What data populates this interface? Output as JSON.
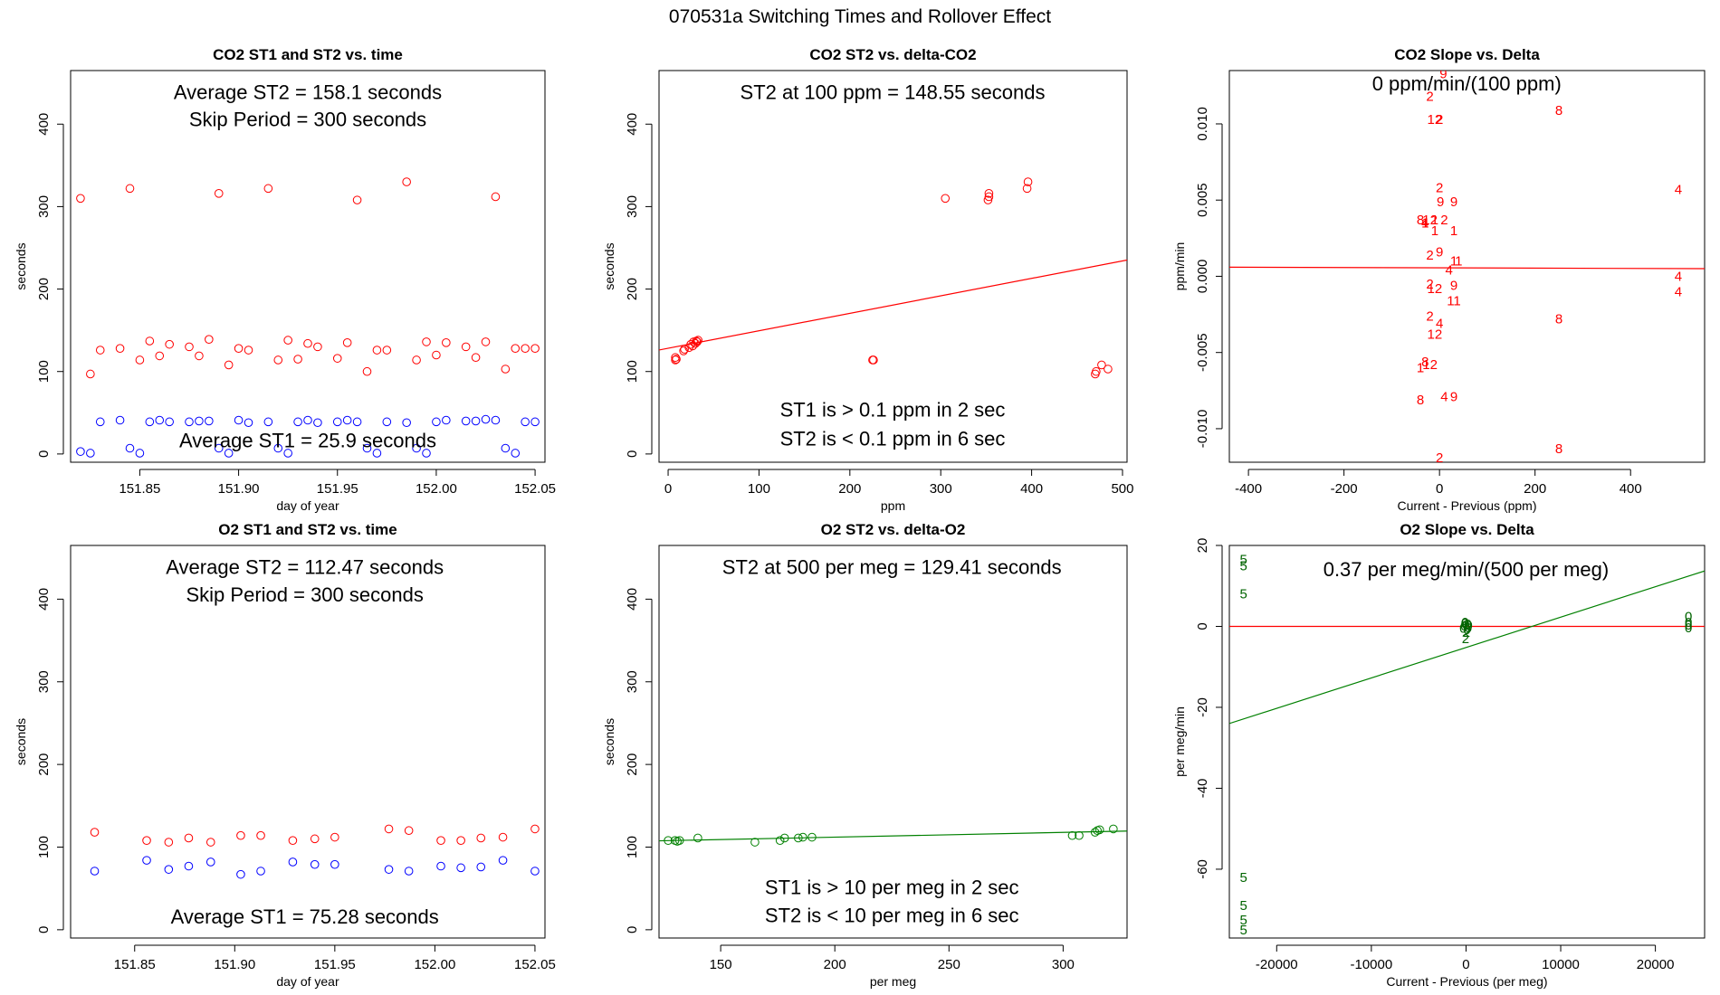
{
  "figure": {
    "title": "070531a   Switching Times and Rollover Effect"
  },
  "chart_data": [
    {
      "id": "co2_time",
      "type": "scatter",
      "title": "CO2 ST1 and ST2 vs. time",
      "xlabel": "day of year",
      "ylabel": "seconds",
      "xlim": [
        151.815,
        152.055
      ],
      "ylim": [
        -10,
        465
      ],
      "xticks": [
        151.85,
        151.9,
        151.95,
        152.0,
        152.05
      ],
      "xtick_labels": [
        "151.85",
        "151.90",
        "151.95",
        "152.00",
        "152.05"
      ],
      "yticks": [
        0,
        100,
        200,
        300,
        400
      ],
      "ytick_labels": [
        "0",
        "100",
        "200",
        "300",
        "400"
      ],
      "annotations": [
        {
          "text": "Average ST2 =  158.1  seconds",
          "x": 151.935,
          "y": 438
        },
        {
          "text": "Skip Period =  300  seconds",
          "x": 151.935,
          "y": 405
        },
        {
          "text": "Average ST1 =  25.9  seconds",
          "x": 151.935,
          "y": 16
        }
      ],
      "series": [
        {
          "name": "ST2",
          "color": "#ff0000",
          "marker": "circle",
          "x": [
            151.82,
            151.825,
            151.83,
            151.84,
            151.845,
            151.85,
            151.855,
            151.86,
            151.865,
            151.875,
            151.88,
            151.885,
            151.89,
            151.895,
            151.9,
            151.905,
            151.915,
            151.92,
            151.925,
            151.93,
            151.935,
            151.94,
            151.95,
            151.955,
            151.96,
            151.965,
            151.97,
            151.975,
            151.985,
            151.99,
            151.995,
            152.0,
            152.005,
            152.015,
            152.02,
            152.025,
            152.03,
            152.035,
            152.04,
            152.045,
            152.05
          ],
          "y": [
            310,
            97,
            126,
            128,
            322,
            114,
            137,
            119,
            133,
            130,
            119,
            139,
            316,
            108,
            128,
            126,
            322,
            114,
            138,
            115,
            134,
            130,
            116,
            135,
            308,
            100,
            126,
            126,
            330,
            114,
            136,
            120,
            135,
            130,
            117,
            136,
            312,
            103,
            128,
            128,
            128
          ]
        },
        {
          "name": "ST1",
          "color": "#0000ff",
          "marker": "circle",
          "x": [
            151.82,
            151.825,
            151.83,
            151.84,
            151.845,
            151.85,
            151.855,
            151.86,
            151.865,
            151.875,
            151.88,
            151.885,
            151.89,
            151.895,
            151.9,
            151.905,
            151.915,
            151.92,
            151.925,
            151.93,
            151.935,
            151.94,
            151.95,
            151.955,
            151.96,
            151.965,
            151.97,
            151.975,
            151.985,
            151.99,
            151.995,
            152.0,
            152.005,
            152.015,
            152.02,
            152.025,
            152.03,
            152.035,
            152.04,
            152.045,
            152.05
          ],
          "y": [
            3,
            1,
            39,
            41,
            7,
            1,
            39,
            41,
            39,
            39,
            40,
            40,
            7,
            1,
            41,
            38,
            39,
            7,
            1,
            39,
            41,
            38,
            39,
            41,
            39,
            7,
            1,
            39,
            38,
            7,
            1,
            39,
            41,
            40,
            40,
            42,
            41,
            7,
            1,
            39,
            39
          ]
        }
      ]
    },
    {
      "id": "co2_delta",
      "type": "scatter",
      "title": "CO2 ST2 vs. delta-CO2",
      "xlabel": "ppm",
      "ylabel": "seconds",
      "xlim": [
        -10,
        505
      ],
      "ylim": [
        -10,
        465
      ],
      "xticks": [
        0,
        100,
        200,
        300,
        400,
        500
      ],
      "xtick_labels": [
        "0",
        "100",
        "200",
        "300",
        "400",
        "500"
      ],
      "yticks": [
        0,
        100,
        200,
        300,
        400
      ],
      "ytick_labels": [
        "0",
        "100",
        "200",
        "300",
        "400"
      ],
      "annotations": [
        {
          "text": "ST2 at 100 ppm =  148.55  seconds",
          "x": 247,
          "y": 438
        },
        {
          "text": "ST1 is > 0.1 ppm in 2 sec",
          "x": 247,
          "y": 53
        },
        {
          "text": "ST2 is < 0.1 ppm in 6 sec",
          "x": 247,
          "y": 18
        }
      ],
      "fit_line": {
        "x": [
          -10,
          505
        ],
        "y": [
          126.1,
          235.2
        ],
        "color": "#ff0000"
      },
      "series": [
        {
          "name": "ST2",
          "color": "#ff0000",
          "marker": "circle",
          "x": [
            8,
            8,
            9,
            17,
            18,
            23,
            25,
            27,
            28,
            30,
            31,
            32,
            33,
            225,
            226,
            305,
            352,
            353,
            353,
            395,
            396,
            470,
            471,
            477,
            484
          ],
          "y": [
            114,
            117,
            115,
            125,
            127,
            129,
            133,
            131,
            136,
            134,
            137,
            136,
            138,
            114,
            114,
            310,
            308,
            312,
            316,
            322,
            330,
            97,
            100,
            108,
            103
          ]
        }
      ]
    },
    {
      "id": "co2_slope",
      "type": "scatter",
      "title": "CO2 Slope vs. Delta",
      "xlabel": "Current - Previous (ppm)",
      "ylabel": "ppm/min",
      "xlim": [
        -440,
        555
      ],
      "ylim": [
        -0.0122,
        0.0135
      ],
      "xticks": [
        -400,
        -200,
        0,
        200,
        400
      ],
      "xtick_labels": [
        "-400",
        "-200",
        "0",
        "200",
        "400"
      ],
      "yticks": [
        -0.01,
        -0.005,
        0.0,
        0.005,
        0.01
      ],
      "ytick_labels": [
        "-0.010",
        "-0.005",
        "0.000",
        "0.005",
        "0.010"
      ],
      "annotations": [
        {
          "text": "0  ppm/min/(100 ppm)",
          "x": 57,
          "y": 0.0126
        }
      ],
      "fit_line": {
        "x": [
          -440,
          555
        ],
        "y": [
          0.0006,
          0.0005
        ],
        "color": "#ff0000"
      },
      "series": [
        {
          "name": "point labels",
          "color": "#ff0000",
          "marker": "label",
          "x": [
            8,
            -20,
            -10,
            0,
            250,
            0,
            2,
            30,
            -20,
            -40,
            -30,
            -30,
            -10,
            10,
            -10,
            30,
            -20,
            0,
            40,
            30,
            20,
            -20,
            -10,
            30,
            30,
            -20,
            -10,
            0,
            20,
            -30,
            -40,
            -20,
            250,
            -40,
            10,
            30,
            250,
            0,
            500,
            500,
            500
          ],
          "y": [
            0.0133,
            0.0118,
            0.0103,
            0.0103,
            0.0109,
            0.0058,
            0.0049,
            0.0049,
            0.0037,
            0.0037,
            0.0035,
            0.0035,
            0.0037,
            0.0037,
            0.003,
            0.003,
            0.0014,
            0.0016,
            0.001,
            0.001,
            0.0004,
            -0.0005,
            -0.0008,
            -0.0006,
            -0.0016,
            -0.0026,
            -0.0038,
            -0.0031,
            -0.0008,
            -0.0056,
            -0.006,
            -0.0058,
            -0.0028,
            -0.0081,
            -0.0079,
            -0.0079,
            -0.0113,
            -0.0119,
            0.0057,
            0.0,
            -0.001
          ],
          "labels": [
            "9",
            "2",
            "12",
            "2",
            "8",
            "2",
            "9",
            "9",
            "12",
            "8",
            "4",
            "1",
            "1",
            "2",
            "1",
            "1",
            "2",
            "9",
            "1",
            "1",
            "4",
            "2",
            "12",
            "9",
            "11",
            "2",
            "12",
            "4",
            "",
            "8",
            "1",
            "12",
            "8",
            "8",
            "4",
            "9",
            "8",
            "2",
            "4",
            "4",
            "4"
          ]
        }
      ]
    },
    {
      "id": "o2_time",
      "type": "scatter",
      "title": "O2 ST1 and ST2 vs. time",
      "xlabel": "day of year",
      "ylabel": "seconds",
      "xlim": [
        151.818,
        152.055
      ],
      "ylim": [
        -10,
        465
      ],
      "xticks": [
        151.85,
        151.9,
        151.95,
        152.0,
        152.05
      ],
      "xtick_labels": [
        "151.85",
        "151.90",
        "151.95",
        "152.00",
        "152.05"
      ],
      "yticks": [
        0,
        100,
        200,
        300,
        400
      ],
      "ytick_labels": [
        "0",
        "100",
        "200",
        "300",
        "400"
      ],
      "annotations": [
        {
          "text": "Average ST2 =  112.47  seconds",
          "x": 151.935,
          "y": 438
        },
        {
          "text": "Skip Period =  300  seconds",
          "x": 151.935,
          "y": 405
        },
        {
          "text": "Average ST1 =  75.28  seconds",
          "x": 151.935,
          "y": 15
        }
      ],
      "series": [
        {
          "name": "ST2",
          "color": "#ff0000",
          "marker": "circle",
          "x": [
            151.83,
            151.856,
            151.867,
            151.877,
            151.888,
            151.903,
            151.913,
            151.929,
            151.94,
            151.95,
            151.977,
            151.987,
            152.003,
            152.013,
            152.023,
            152.034,
            152.05
          ],
          "y": [
            118,
            108,
            106,
            111,
            106,
            114,
            114,
            108,
            110,
            112,
            122,
            120,
            108,
            108,
            111,
            112,
            122
          ]
        },
        {
          "name": "ST1",
          "color": "#0000ff",
          "marker": "circle",
          "x": [
            151.83,
            151.856,
            151.867,
            151.877,
            151.888,
            151.903,
            151.913,
            151.929,
            151.94,
            151.95,
            151.977,
            151.987,
            152.003,
            152.013,
            152.023,
            152.034,
            152.05
          ],
          "y": [
            71,
            84,
            73,
            77,
            82,
            67,
            71,
            82,
            79,
            79,
            73,
            71,
            77,
            75,
            76,
            84,
            71
          ]
        }
      ]
    },
    {
      "id": "o2_delta",
      "type": "scatter",
      "title": "O2 ST2 vs. delta-O2",
      "xlabel": "per meg",
      "ylabel": "seconds",
      "xlim": [
        123,
        328
      ],
      "ylim": [
        -10,
        465
      ],
      "xticks": [
        150,
        200,
        250,
        300
      ],
      "xtick_labels": [
        "150",
        "200",
        "250",
        "300"
      ],
      "yticks": [
        0,
        100,
        200,
        300,
        400
      ],
      "ytick_labels": [
        "0",
        "100",
        "200",
        "300",
        "400"
      ],
      "annotations": [
        {
          "text": "ST2 at 500 per meg =  129.41  seconds",
          "x": 225,
          "y": 438
        },
        {
          "text": "ST1 is > 10 per meg in 2 sec",
          "x": 225,
          "y": 51
        },
        {
          "text": "ST2 is < 10 per meg in 6 sec",
          "x": 225,
          "y": 17
        }
      ],
      "fit_line": {
        "x": [
          123,
          328
        ],
        "y": [
          107.6,
          119.4
        ],
        "color": "#008000"
      },
      "series": [
        {
          "name": "ST2",
          "color": "#008000",
          "marker": "circle",
          "x": [
            127,
            130,
            131,
            132,
            140,
            165,
            176,
            178,
            184,
            186,
            190,
            304,
            307,
            314,
            315,
            316,
            322
          ],
          "y": [
            108,
            108,
            107,
            108,
            111,
            106,
            108,
            111,
            111,
            112,
            112,
            114,
            114,
            118,
            120,
            121,
            122
          ]
        }
      ]
    },
    {
      "id": "o2_slope",
      "type": "scatter",
      "title": "O2 Slope vs. Delta",
      "xlabel": "Current - Previous (per meg)",
      "ylabel": "per meg/min",
      "xlim": [
        -25000,
        25200
      ],
      "ylim": [
        -77,
        20
      ],
      "xticks": [
        -20000,
        -10000,
        0,
        10000,
        20000
      ],
      "xtick_labels": [
        "-20000",
        "-10000",
        "0",
        "10000",
        "20000"
      ],
      "yticks": [
        -60,
        -40,
        -20,
        0,
        20
      ],
      "ytick_labels": [
        "-60",
        "-40",
        "-20",
        "0",
        "20"
      ],
      "annotations": [
        {
          "text": "0.37  per meg/min/(500 per meg)",
          "x": 0,
          "y": 14
        }
      ],
      "zero_line": {
        "x": [
          -25000,
          25200
        ],
        "y": [
          0,
          0
        ],
        "color": "#ff0000"
      },
      "fit_line": {
        "x": [
          -25000,
          25200
        ],
        "y": [
          -24,
          13.7
        ],
        "color": "#008000"
      },
      "series": [
        {
          "name": "point labels",
          "color": "#006400",
          "marker": "label",
          "x": [
            -23500,
            -23500,
            -23500,
            -23500,
            -23500,
            -23500,
            -23500,
            -150,
            0,
            200,
            -300,
            100,
            -100,
            300,
            50,
            -200,
            -50,
            250,
            23500,
            23500,
            23500,
            23500
          ],
          "y": [
            16.5,
            15,
            8,
            -62,
            -69,
            -72.5,
            -75,
            0.8,
            0.3,
            0.5,
            -0.5,
            -0.8,
            1,
            0.2,
            -1.5,
            0.1,
            -3,
            -0.3,
            2.5,
            1,
            0.3,
            -0.3
          ],
          "labels": [
            "5",
            "5",
            "5",
            "5",
            "5",
            "5",
            "5",
            "0",
            "0",
            "0",
            "0",
            "0",
            "0",
            "0",
            "2",
            "0",
            "2",
            "0",
            "0",
            "0",
            "0",
            "0"
          ]
        }
      ]
    }
  ]
}
